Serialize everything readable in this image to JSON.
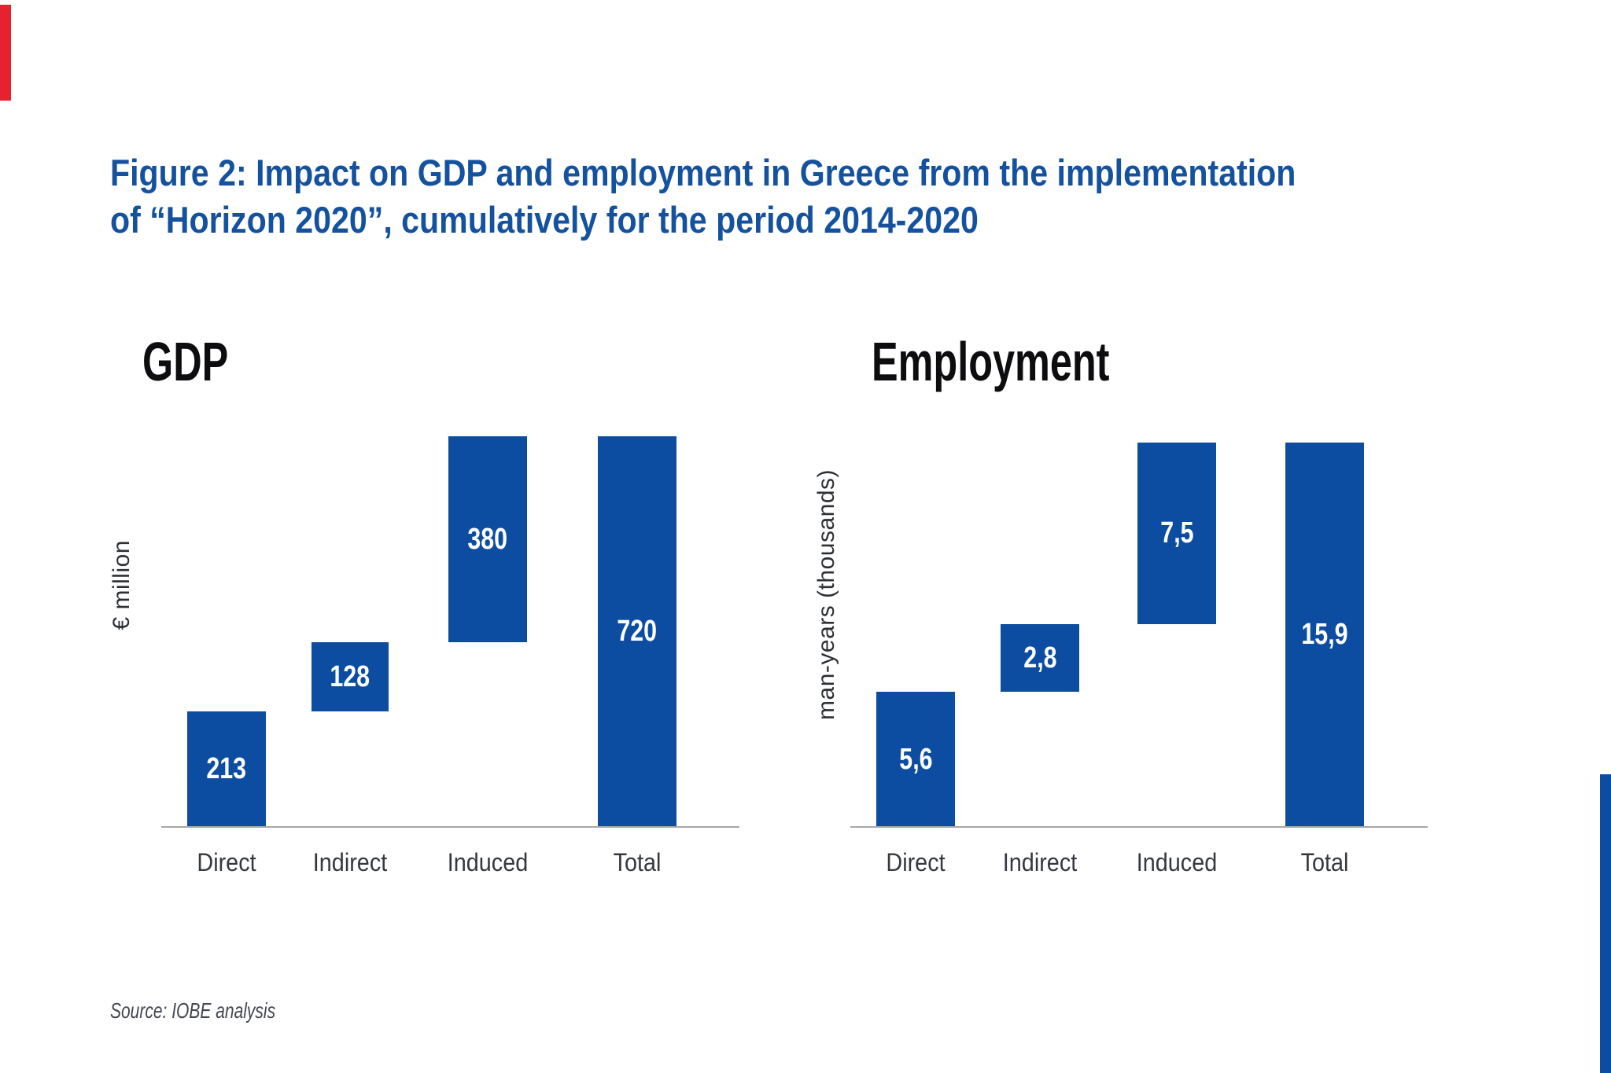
{
  "figure": {
    "title_line1": "Figure 2: Impact on GDP and employment in Greece from the implementation",
    "title_line2": "of “Horizon 2020”, cumulatively for the period 2014-2020",
    "source": "Source: IOBE analysis"
  },
  "colors": {
    "bar_blue": "#0d4da1",
    "title_blue": "#14519f",
    "accent_red": "#e8212e",
    "axis_gray": "#a7a7a7",
    "heading_black": "#0d0d0f",
    "value_label_white": "#ffffff"
  },
  "chart_data": [
    {
      "type": "bar",
      "subtype": "waterfall",
      "title": "GDP",
      "ylabel": "€ million",
      "categories": [
        "Direct",
        "Indirect",
        "Induced",
        "Total"
      ],
      "values": [
        213,
        128,
        380,
        720
      ],
      "segment_start": [
        0,
        213,
        341,
        0
      ],
      "segment_end": [
        213,
        341,
        721,
        720
      ],
      "display_values": [
        "213",
        "128",
        "380",
        "720"
      ],
      "ylim": [
        0,
        730
      ],
      "grid": false,
      "legend": false,
      "bar_color": "#0d4da1",
      "value_label_position": "center-inside"
    },
    {
      "type": "bar",
      "subtype": "waterfall",
      "title": "Employment",
      "ylabel": "man-years (thousands)",
      "categories": [
        "Direct",
        "Indirect",
        "Induced",
        "Total"
      ],
      "values": [
        5.6,
        2.8,
        7.5,
        15.9
      ],
      "segment_start": [
        0,
        5.6,
        8.4,
        0
      ],
      "segment_end": [
        5.6,
        8.4,
        15.9,
        15.9
      ],
      "display_values": [
        "5,6",
        "2,8",
        "7,5",
        "15,9"
      ],
      "ylim": [
        0,
        15.9
      ],
      "grid": false,
      "legend": false,
      "bar_color": "#0d4da1",
      "value_label_position": "center-inside"
    }
  ]
}
